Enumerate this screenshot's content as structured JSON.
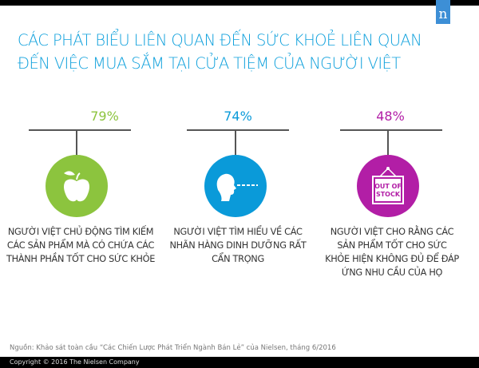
{
  "header": {
    "logo": "n",
    "title": "CÁC PHÁT BIỂU LIÊN QUAN ĐẾN SỨC KHOẺ LIÊN QUAN ĐẾN VIỆC MUA SẮM TẠI CỬA TIỆM CỦA NGƯỜI VIỆT"
  },
  "stats": [
    {
      "value": "79%",
      "color": "#8cc43e",
      "icon": "apple-icon",
      "text": "NGƯỜI VIỆT CHỦ ĐỘNG TÌM KIẾM CÁC SẢN PHẨM MÀ CÓ CHỨA CÁC THÀNH PHẦN TỐT CHO SỨC KHỎE"
    },
    {
      "value": "74%",
      "color": "#0a9ad9",
      "icon": "head-profile-icon",
      "text": "NGƯỜI VIỆT TÌM HIỂU VỀ CÁC NHÃN HÀNG DINH DƯỠNG RẤT CẨN TRỌNG"
    },
    {
      "value": "48%",
      "color": "#b21ea6",
      "icon": "out-of-stock-sign-icon",
      "sign_text": "OUT OF STOCK",
      "text": "NGƯỜI VIỆT CHO RẰNG CÁC SẢN PHẨM TỐT CHO SỨC KHỎE HIỆN KHÔNG ĐỦ ĐỂ ĐÁP ỨNG NHU CẦU CỦA HỌ"
    }
  ],
  "source": "Nguồn: Khảo sát toàn cầu “Các Chiến Lược Phát Triển Ngành Bán Lẻ” của Nielsen, tháng 6/2016",
  "footer": "Copyright © 2016 The Nielsen Company"
}
